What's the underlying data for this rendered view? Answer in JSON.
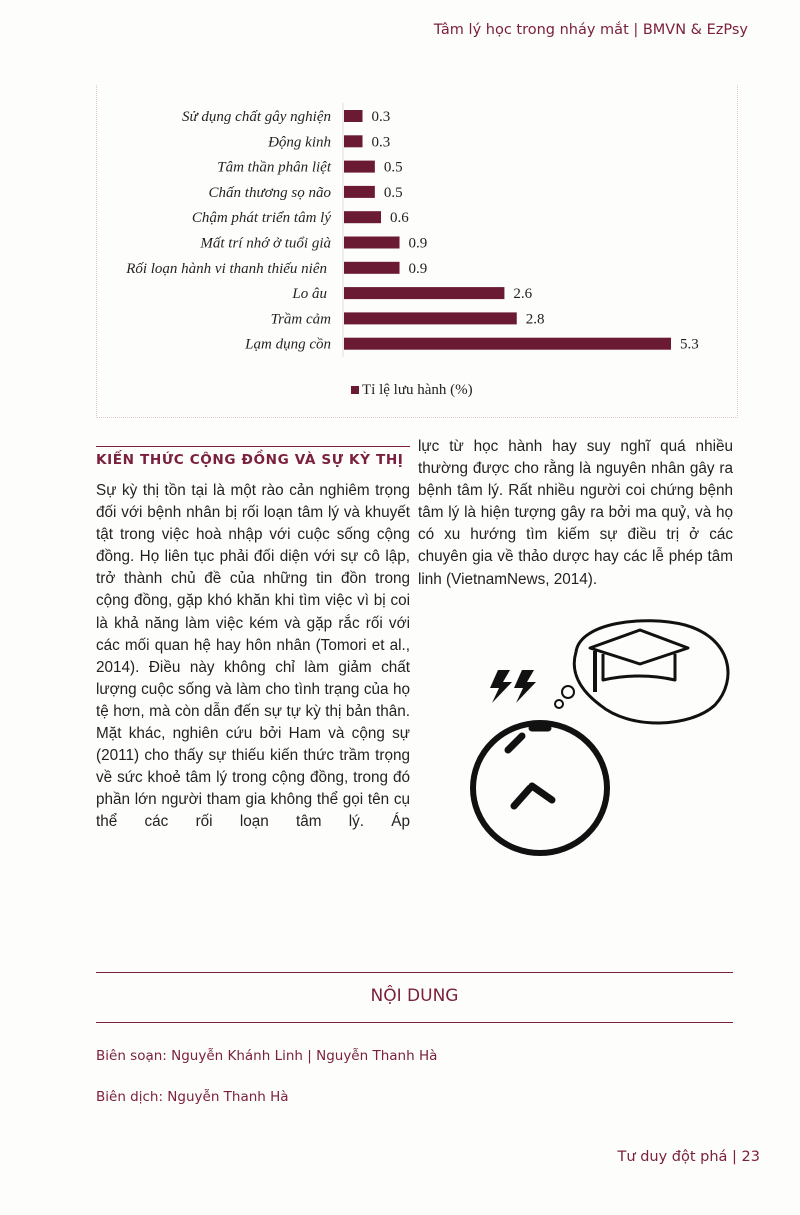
{
  "header": {
    "running_title": "Tâm lý học trong nháy mắt | BMVN & EzPsy"
  },
  "chart_data": {
    "type": "bar",
    "orientation": "horizontal",
    "categories": [
      "Sử dụng chất gây nghiện",
      "Động kinh",
      "Tâm thần phân liệt",
      "Chấn thương sọ não",
      "Chậm phát triển tâm lý",
      "Mất trí nhớ ở tuổi già",
      "Rối loạn hành vi thanh thiếu niên",
      "Lo âu",
      "Trầm cảm",
      "Lạm dụng cồn"
    ],
    "series": [
      {
        "name": "Tỉ lệ lưu hành (%)",
        "values": [
          0.3,
          0.3,
          0.5,
          0.5,
          0.6,
          0.9,
          0.9,
          2.6,
          2.8,
          5.3
        ]
      }
    ],
    "data_labels": [
      "0.3",
      "0.3",
      "0.5",
      "0.5",
      "0.6",
      "0.9",
      "0.9",
      "2.6",
      "2.8",
      "5.3"
    ],
    "legend_position": "bottom",
    "grid": false,
    "color": "#6b1a33"
  },
  "section": {
    "title": "KIẾN THỨC CỘNG ĐỒNG VÀ SỰ KỲ THỊ",
    "left_text": "Sự kỳ thị tồn tại là một rào cản nghiêm trọng đối với bệnh nhân bị rối loạn tâm lý và khuyết tật trong việc hoà nhập với cuộc sống cộng đồng. Họ liên tục phải đối diện với sự cô lập, trở thành chủ đề của những tin đồn trong cộng đồng, gặp khó khăn khi tìm việc vì bị coi là khả năng làm việc kém và gặp rắc rối với các mối quan hệ hay hôn nhân (Tomori et al., 2014). Điều này không chỉ làm giảm chất lượng cuộc sống và làm cho tình trạng của họ tệ hơn, mà còn dẫn đến sự tự kỳ thị bản thân. Mặt khác, nghiên cứu bởi Ham và cộng sự (2011) cho thấy sự thiếu kiến thức trầm trọng về sức khoẻ tâm lý trong cộng đồng, trong đó phần lớn người tham gia không thể gọi tên cụ thể các rối loạn tâm lý. Áp",
    "right_text": "lực từ học hành hay suy nghĩ quá nhiều thường được cho rằng là nguyên nhân gây ra bệnh tâm lý. Rất nhiều người coi chứng bệnh tâm lý là hiện tượng gây ra bởi ma quỷ, và họ có xu hướng tìm kiếm sự điều trị ở các chuyên gia về thảo dược hay các lễ phép tâm linh (VietnamNews, 2014)."
  },
  "contents": {
    "title": "NỘI DUNG",
    "compiled_by": "Biên soạn: Nguyễn Khánh Linh | Nguyễn Thanh Hà",
    "translated_by": "Biên dịch: Nguyễn Thanh Hà"
  },
  "footer": {
    "text": "Tư duy đột phá | 23"
  },
  "colors": {
    "accent": "#7a1f3d",
    "bar": "#6b1a33"
  }
}
